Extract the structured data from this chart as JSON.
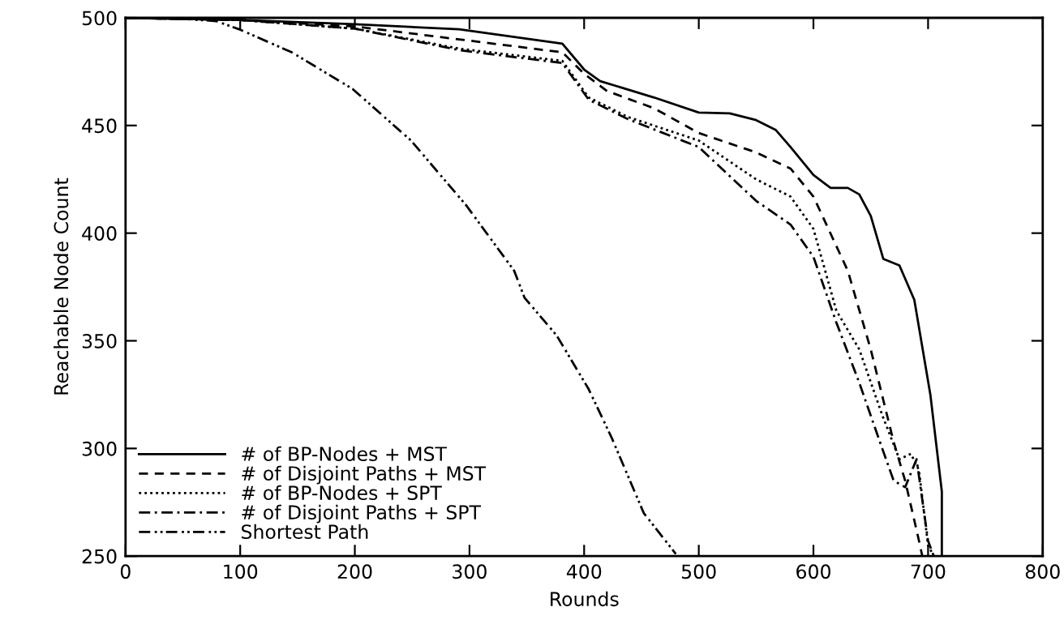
{
  "chart_data": {
    "type": "line",
    "xlabel": "Rounds",
    "ylabel": "Reachable Node Count",
    "xlim": [
      0,
      800
    ],
    "ylim": [
      250,
      500
    ],
    "xticks": [
      0,
      100,
      200,
      300,
      400,
      500,
      600,
      700,
      800
    ],
    "yticks": [
      250,
      300,
      350,
      400,
      450,
      500
    ],
    "grid": false,
    "legend": "bottom left",
    "marker": "none",
    "series": [
      {
        "name": "# of BP-Nodes + MST",
        "color": "#000000",
        "line_style": "solid",
        "x": [
          0,
          100,
          200,
          291,
          381,
          400,
          414,
          461,
          500,
          527,
          550,
          567,
          580,
          600,
          615,
          630,
          640,
          650,
          661,
          675,
          688,
          702,
          712,
          712
        ],
        "values": [
          500,
          499,
          497,
          494.7,
          488,
          476,
          470.6,
          463,
          456,
          455.6,
          452.5,
          448,
          440,
          427,
          421,
          421,
          418,
          408,
          388,
          385,
          369,
          325,
          280,
          250
        ]
      },
      {
        "name": "# of Disjoint Paths + MST",
        "color": "#000000",
        "line_style": "dashed",
        "x": [
          0,
          100,
          200,
          291,
          381,
          400,
          420,
          461,
          500,
          550,
          580,
          600,
          630,
          650,
          670,
          680,
          690,
          695
        ],
        "values": [
          500,
          499,
          496,
          490,
          484,
          474,
          466,
          458,
          446.5,
          437.5,
          430,
          417,
          382.5,
          346,
          303,
          285,
          262,
          250
        ]
      },
      {
        "name": "# of BP-Nodes + SPT",
        "color": "#000000",
        "line_style": "dotted",
        "x": [
          0,
          100,
          200,
          291,
          381,
          404,
          438,
          500,
          550,
          580,
          600,
          620,
          640,
          660,
          675,
          685,
          692,
          700,
          705
        ],
        "values": [
          500,
          499,
          495,
          485.7,
          480,
          463,
          454,
          443,
          425,
          417,
          402,
          364,
          346,
          315.5,
          295,
          297.5,
          290,
          255,
          250
        ]
      },
      {
        "name": "# of Disjoint Paths + SPT",
        "color": "#000000",
        "line_style": "dashdot",
        "x": [
          0,
          100,
          200,
          291,
          381,
          404,
          438,
          500,
          550,
          580,
          600,
          620,
          640,
          660,
          670,
          680,
          690,
          700,
          705
        ],
        "values": [
          500,
          499,
          495,
          485,
          479,
          462,
          453,
          440,
          415,
          404,
          389,
          358.5,
          330.5,
          300,
          285,
          282,
          295,
          257,
          250
        ]
      },
      {
        "name": "Shortest Path",
        "color": "#000000",
        "line_style": "dashdotdot",
        "x": [
          0,
          50,
          79,
          99,
          145,
          198,
          249,
          297,
          339,
          348,
          376,
          404,
          424,
          452,
          480
        ],
        "values": [
          500,
          499.5,
          498.5,
          494.7,
          484,
          467,
          443,
          413,
          382.5,
          370,
          352.5,
          327.5,
          305,
          270,
          251
        ]
      }
    ]
  }
}
